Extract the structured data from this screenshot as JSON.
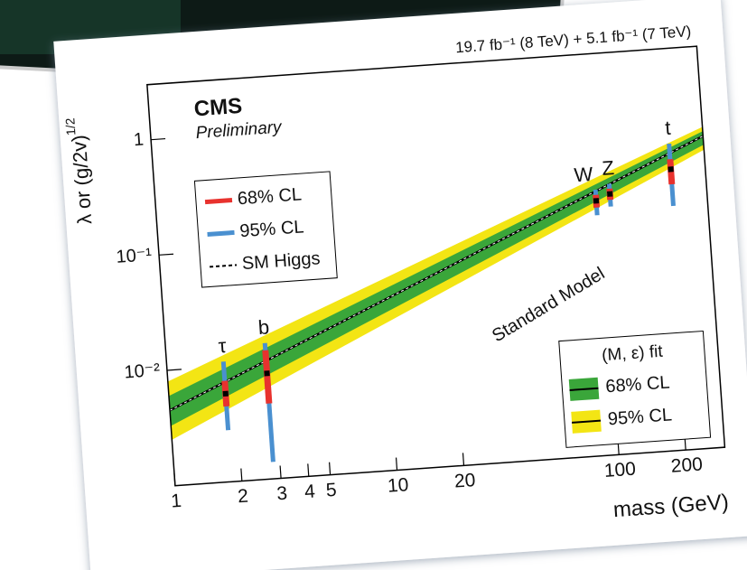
{
  "chart_data": {
    "type": "scatter",
    "header": "19.7 fb⁻¹ (8 TeV) + 5.1 fb⁻¹ (7 TeV)",
    "experiment": "CMS",
    "status": "Preliminary",
    "ylabel": {
      "text": "λ or (g/2v)",
      "superscript": "1/2"
    },
    "xlabel": "mass (GeV)",
    "curve_label": "Standard Model",
    "log_x": true,
    "log_y": true,
    "xlim": [
      1,
      300
    ],
    "ylim": [
      0.001,
      3
    ],
    "xticks": [
      1,
      2,
      3,
      4,
      5,
      10,
      20,
      100,
      200
    ],
    "yticks": [
      1,
      {
        "value": 0.1,
        "label": "10⁻¹"
      },
      {
        "value": 0.01,
        "label": "10⁻²"
      }
    ],
    "points": [
      {
        "label": "τ",
        "x": 1.8,
        "y": 0.0058,
        "ci68": [
          0.0045,
          0.0075
        ],
        "ci95": [
          0.0028,
          0.011
        ]
      },
      {
        "label": "b",
        "x": 2.8,
        "y": 0.0082,
        "ci68": [
          0.0045,
          0.013
        ],
        "ci95": [
          0.0014,
          0.015
        ]
      },
      {
        "label": "W",
        "x": 95,
        "y": 0.16,
        "ci68": [
          0.14,
          0.18
        ],
        "ci95": [
          0.12,
          0.2
        ]
      },
      {
        "label": "Z",
        "x": 110,
        "y": 0.18,
        "ci68": [
          0.16,
          0.2
        ],
        "ci95": [
          0.14,
          0.22
        ]
      },
      {
        "label": "t",
        "x": 210,
        "y": 0.27,
        "ci68": [
          0.2,
          0.33
        ],
        "ci95": [
          0.13,
          0.45
        ]
      }
    ],
    "sm_line": {
      "x": [
        1,
        300
      ],
      "y": [
        0.0045,
        0.5
      ]
    },
    "bands": [
      {
        "name": "95% CL",
        "color": "#f3e514",
        "x": [
          1,
          300
        ],
        "lower": [
          0.0025,
          0.38
        ],
        "upper": [
          0.008,
          0.6
        ]
      },
      {
        "name": "68% CL",
        "color": "#3aa63a",
        "x": [
          1,
          300
        ],
        "lower": [
          0.0033,
          0.42
        ],
        "upper": [
          0.006,
          0.55
        ]
      }
    ],
    "error_legend": [
      {
        "name": "68% CL",
        "color": "#e8322e"
      },
      {
        "name": "95% CL",
        "color": "#4a90d0"
      },
      {
        "name": "SM Higgs",
        "color": "#000000"
      }
    ],
    "fit_legend_title": "(M, ε) fit"
  }
}
